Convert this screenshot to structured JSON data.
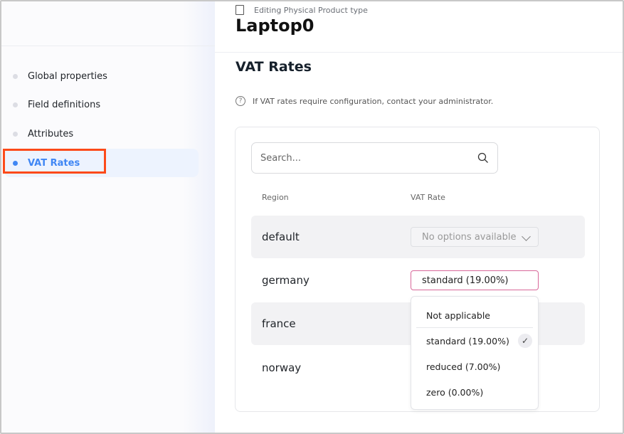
{
  "sidebar": {
    "items": [
      {
        "label": "Global properties",
        "active": false
      },
      {
        "label": "Field definitions",
        "active": false
      },
      {
        "label": "Attributes",
        "active": false
      },
      {
        "label": "VAT Rates",
        "active": true
      }
    ]
  },
  "header": {
    "subtitle": "Editing Physical Product type",
    "title": "Laptop0"
  },
  "section": {
    "title": "VAT Rates",
    "info": "If VAT rates require configuration, contact your administrator.",
    "info_icon": "?"
  },
  "search": {
    "placeholder": "Search..."
  },
  "table": {
    "columns": [
      "Region",
      "VAT Rate"
    ],
    "rows": [
      {
        "region": "default",
        "value": "No options available",
        "disabled": true
      },
      {
        "region": "germany",
        "value": "standard (19.00%)",
        "open": true
      },
      {
        "region": "france",
        "value": ""
      },
      {
        "region": "norway",
        "value": ""
      }
    ]
  },
  "dropdown": {
    "options": [
      "Not applicable",
      "standard (19.00%)",
      "reduced (7.00%)",
      "zero (0.00%)"
    ],
    "selected": "standard (19.00%)",
    "check": "✓"
  },
  "colors": {
    "accent": "#3f86f4",
    "highlight": "#fc4a1a",
    "focus_border": "#d8689a"
  }
}
